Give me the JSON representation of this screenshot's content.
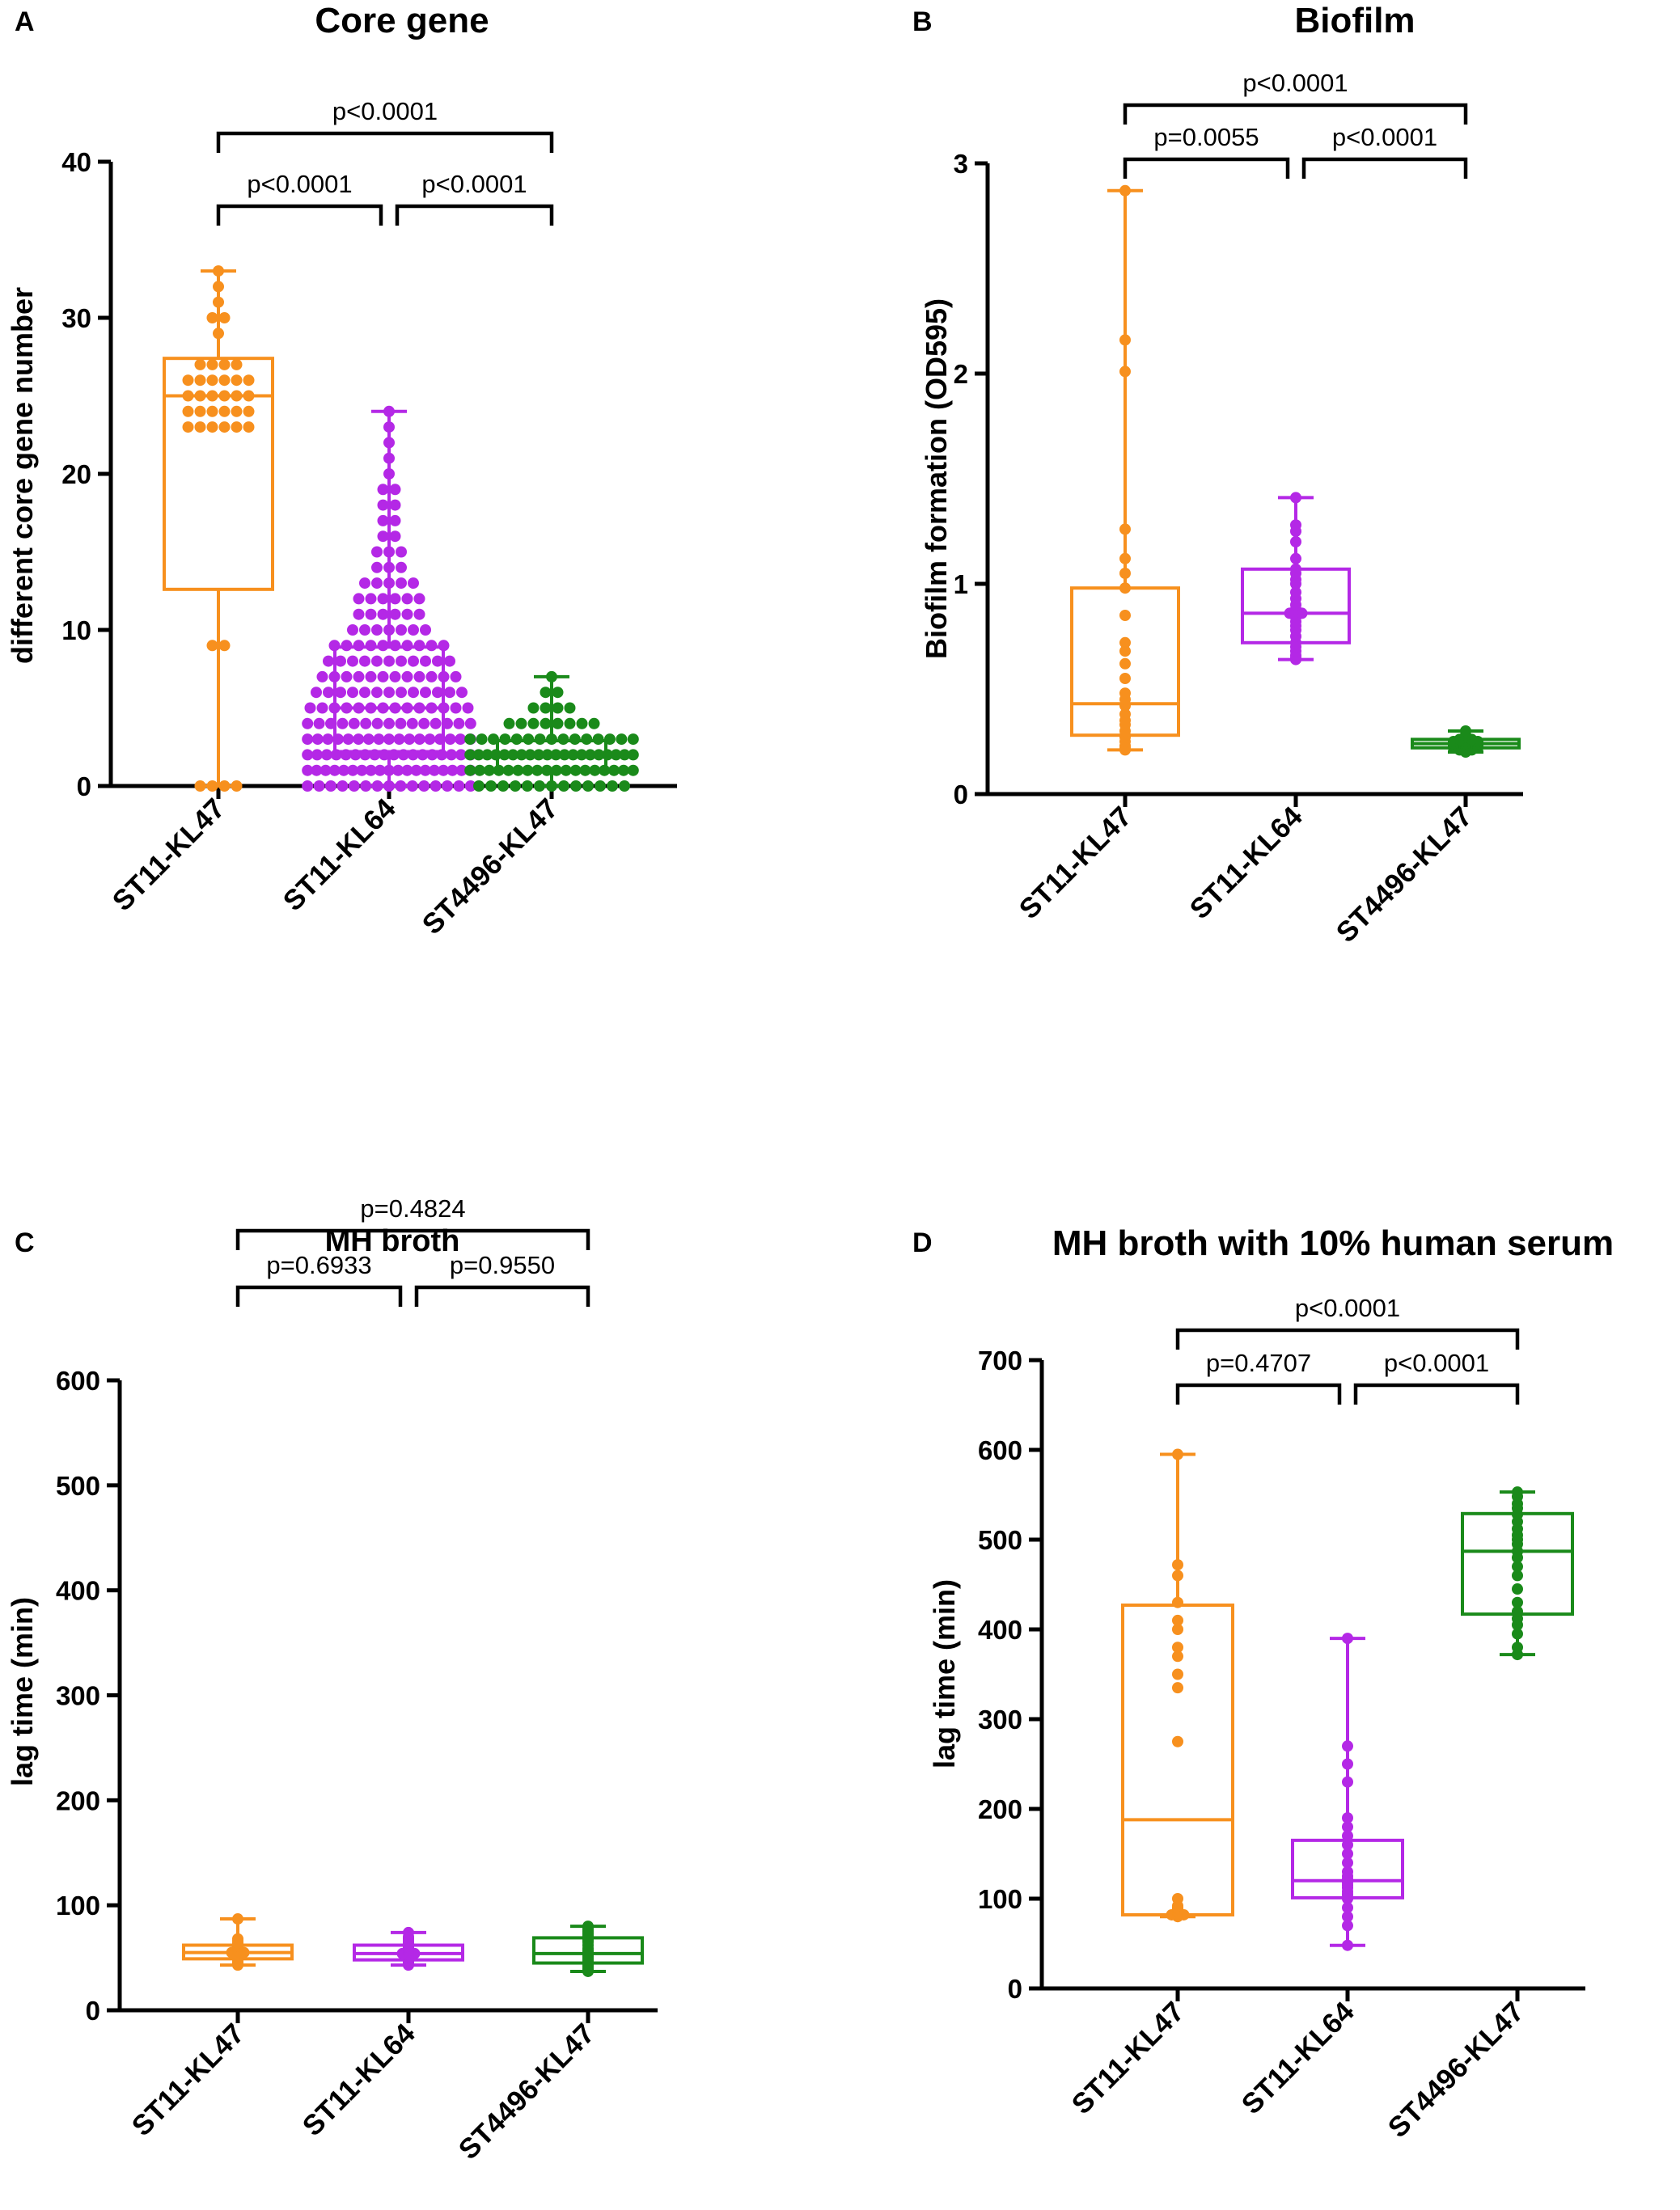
{
  "colors": {
    "ST11-KL47": "#F7901E",
    "ST11-KL64": "#B428E6",
    "ST4496-KL47": "#1A8A1A",
    "axis": "#000000"
  },
  "chart_data": [
    {
      "panel": "A",
      "type": "box",
      "title": "Core gene",
      "xlabel": "",
      "ylabel": "different core gene number",
      "ylim": [
        0,
        40
      ],
      "yticks": [
        0,
        10,
        20,
        30,
        40
      ],
      "categories": [
        "ST11-KL47",
        "ST11-KL64",
        "ST4496-KL47"
      ],
      "boxes": [
        {
          "name": "ST11-KL47",
          "min": 0,
          "q1": 12.6,
          "median": 25,
          "q3": 27.4,
          "max": 33
        },
        {
          "name": "ST11-KL64",
          "min": 0,
          "q1": 2.2,
          "median": 5,
          "q3": 8.9,
          "max": 24
        },
        {
          "name": "ST4496-KL47",
          "min": 0,
          "q1": 1,
          "median": 2,
          "q3": 2.9,
          "max": 7
        }
      ],
      "points": [
        [
          0,
          0,
          0,
          0,
          9,
          9,
          23,
          23,
          23,
          23,
          23,
          23,
          24,
          24,
          24,
          24,
          24,
          24,
          25,
          25,
          25,
          25,
          25,
          25,
          26,
          26,
          26,
          26,
          26,
          26,
          27,
          27,
          27,
          27,
          29,
          30,
          30,
          31,
          32,
          33
        ],
        [
          0,
          0,
          0,
          0,
          0,
          0,
          0,
          0,
          0,
          0,
          0,
          0,
          0,
          0,
          0,
          1,
          1,
          1,
          1,
          1,
          1,
          1,
          1,
          1,
          1,
          1,
          1,
          1,
          1,
          1,
          1,
          1,
          1,
          1,
          2,
          2,
          2,
          2,
          2,
          2,
          2,
          2,
          2,
          2,
          2,
          2,
          2,
          2,
          2,
          2,
          2,
          2,
          3,
          3,
          3,
          3,
          3,
          3,
          3,
          3,
          3,
          3,
          3,
          3,
          3,
          3,
          3,
          3,
          3,
          4,
          4,
          4,
          4,
          4,
          4,
          4,
          4,
          4,
          4,
          4,
          4,
          4,
          4,
          4,
          5,
          5,
          5,
          5,
          5,
          5,
          5,
          5,
          5,
          5,
          5,
          5,
          5,
          5,
          6,
          6,
          6,
          6,
          6,
          6,
          6,
          6,
          6,
          6,
          6,
          6,
          6,
          7,
          7,
          7,
          7,
          7,
          7,
          7,
          7,
          7,
          7,
          7,
          7,
          8,
          8,
          8,
          8,
          8,
          8,
          8,
          8,
          8,
          8,
          8,
          9,
          9,
          9,
          9,
          9,
          9,
          9,
          9,
          9,
          9,
          10,
          10,
          10,
          10,
          10,
          10,
          10,
          11,
          11,
          11,
          11,
          11,
          11,
          12,
          12,
          12,
          12,
          12,
          12,
          13,
          13,
          13,
          13,
          13,
          14,
          14,
          14,
          15,
          15,
          15,
          16,
          16,
          17,
          17,
          18,
          18,
          19,
          19,
          20,
          21,
          22,
          23,
          24
        ],
        [
          0,
          0,
          0,
          0,
          0,
          0,
          0,
          0,
          0,
          0,
          0,
          0,
          0,
          1,
          1,
          1,
          1,
          1,
          1,
          1,
          1,
          1,
          1,
          1,
          1,
          1,
          1,
          1,
          1,
          1,
          1,
          2,
          2,
          2,
          2,
          2,
          2,
          2,
          2,
          2,
          2,
          2,
          2,
          2,
          2,
          2,
          2,
          2,
          2,
          2,
          2,
          3,
          3,
          3,
          3,
          3,
          3,
          3,
          3,
          3,
          3,
          3,
          3,
          3,
          3,
          3,
          4,
          4,
          4,
          4,
          4,
          4,
          4,
          4,
          5,
          5,
          5,
          5,
          6,
          6,
          7
        ]
      ],
      "comparisons": [
        {
          "between": [
            "ST11-KL47",
            "ST11-KL64"
          ],
          "label": "p<0.0001"
        },
        {
          "between": [
            "ST11-KL64",
            "ST4496-KL47"
          ],
          "label": "p<0.0001"
        },
        {
          "between": [
            "ST11-KL47",
            "ST4496-KL47"
          ],
          "label": "p<0.0001"
        }
      ]
    },
    {
      "panel": "B",
      "type": "box",
      "title": "Biofilm",
      "xlabel": "",
      "ylabel": "Biofilm formation (OD595)",
      "ylim": [
        0,
        3
      ],
      "yticks": [
        0,
        1,
        2,
        3
      ],
      "categories": [
        "ST11-KL47",
        "ST11-KL64",
        "ST4496-KL47"
      ],
      "boxes": [
        {
          "name": "ST11-KL47",
          "min": 0.21,
          "q1": 0.28,
          "median": 0.43,
          "q3": 0.98,
          "max": 2.87
        },
        {
          "name": "ST11-KL64",
          "min": 0.64,
          "q1": 0.72,
          "median": 0.86,
          "q3": 1.07,
          "max": 1.41
        },
        {
          "name": "ST4496-KL47",
          "min": 0.2,
          "q1": 0.22,
          "median": 0.24,
          "q3": 0.26,
          "max": 0.3
        }
      ],
      "points": [
        [
          0.21,
          0.22,
          0.23,
          0.25,
          0.27,
          0.28,
          0.3,
          0.33,
          0.35,
          0.38,
          0.42,
          0.45,
          0.48,
          0.55,
          0.62,
          0.68,
          0.72,
          0.85,
          0.98,
          1.05,
          1.12,
          1.26,
          2.01,
          2.16,
          2.87
        ],
        [
          0.64,
          0.65,
          0.66,
          0.68,
          0.7,
          0.72,
          0.75,
          0.78,
          0.8,
          0.82,
          0.84,
          0.86,
          0.86,
          0.88,
          0.9,
          0.93,
          0.96,
          1.0,
          1.02,
          1.05,
          1.07,
          1.12,
          1.2,
          1.25,
          1.28,
          1.41
        ],
        [
          0.2,
          0.21,
          0.21,
          0.22,
          0.22,
          0.22,
          0.23,
          0.23,
          0.23,
          0.24,
          0.24,
          0.24,
          0.25,
          0.25,
          0.25,
          0.26,
          0.26,
          0.27,
          0.28,
          0.3
        ]
      ],
      "comparisons": [
        {
          "between": [
            "ST11-KL47",
            "ST11-KL64"
          ],
          "label": "p=0.0055"
        },
        {
          "between": [
            "ST11-KL64",
            "ST4496-KL47"
          ],
          "label": "p<0.0001"
        },
        {
          "between": [
            "ST11-KL47",
            "ST4496-KL47"
          ],
          "label": "p<0.0001"
        }
      ]
    },
    {
      "panel": "C",
      "type": "box",
      "title": "MH broth",
      "xlabel": "",
      "ylabel": "lag time (min)",
      "ylim": [
        0,
        600
      ],
      "yticks": [
        0,
        100,
        200,
        300,
        400,
        500,
        600
      ],
      "categories": [
        "ST11-KL47",
        "ST11-KL64",
        "ST4496-KL47"
      ],
      "boxes": [
        {
          "name": "ST11-KL47",
          "min": 43,
          "q1": 49,
          "median": 55,
          "q3": 62,
          "max": 87
        },
        {
          "name": "ST11-KL64",
          "min": 43,
          "q1": 48,
          "median": 54,
          "q3": 62,
          "max": 74
        },
        {
          "name": "ST4496-KL47",
          "min": 37,
          "q1": 45,
          "median": 54,
          "q3": 69,
          "max": 80
        }
      ],
      "points": [
        [
          43,
          44,
          45,
          46,
          48,
          49,
          50,
          51,
          52,
          53,
          54,
          55,
          55,
          56,
          57,
          58,
          59,
          60,
          61,
          62,
          63,
          64,
          66,
          68,
          87
        ],
        [
          43,
          44,
          46,
          47,
          48,
          49,
          50,
          51,
          52,
          53,
          54,
          54,
          55,
          56,
          57,
          58,
          59,
          60,
          62,
          64,
          66,
          68,
          70,
          74
        ],
        [
          37,
          38,
          40,
          42,
          44,
          45,
          47,
          49,
          51,
          53,
          54,
          55,
          57,
          59,
          62,
          65,
          67,
          69,
          71,
          73,
          75,
          77,
          79,
          80
        ]
      ],
      "comparisons": [
        {
          "between": [
            "ST11-KL47",
            "ST11-KL64"
          ],
          "label": "p=0.6933"
        },
        {
          "between": [
            "ST11-KL64",
            "ST4496-KL47"
          ],
          "label": "p=0.9550"
        },
        {
          "between": [
            "ST11-KL47",
            "ST4496-KL47"
          ],
          "label": "p=0.4824"
        }
      ]
    },
    {
      "panel": "D",
      "type": "box",
      "title": "MH broth with 10% human serum",
      "xlabel": "",
      "ylabel": "lag time (min)",
      "ylim": [
        0,
        700
      ],
      "yticks": [
        0,
        100,
        200,
        300,
        400,
        500,
        600,
        700
      ],
      "categories": [
        "ST11-KL47",
        "ST11-KL64",
        "ST4496-KL47"
      ],
      "boxes": [
        {
          "name": "ST11-KL47",
          "min": 80,
          "q1": 82,
          "median": 188,
          "q3": 427,
          "max": 595
        },
        {
          "name": "ST11-KL64",
          "min": 48,
          "q1": 101,
          "median": 120,
          "q3": 165,
          "max": 390
        },
        {
          "name": "ST4496-KL47",
          "min": 372,
          "q1": 417,
          "median": 487,
          "q3": 529,
          "max": 553
        }
      ],
      "points": [
        [
          80,
          81,
          82,
          82,
          83,
          84,
          85,
          86,
          87,
          88,
          89,
          90,
          92,
          100,
          275,
          335,
          350,
          370,
          380,
          400,
          410,
          430,
          460,
          472,
          595
        ],
        [
          48,
          70,
          80,
          90,
          100,
          102,
          105,
          108,
          112,
          115,
          118,
          120,
          122,
          125,
          130,
          140,
          150,
          160,
          170,
          180,
          190,
          230,
          250,
          270,
          390
        ],
        [
          372,
          380,
          395,
          405,
          412,
          420,
          430,
          445,
          460,
          470,
          480,
          487,
          495,
          500,
          505,
          512,
          520,
          528,
          535,
          540,
          548,
          553
        ]
      ],
      "comparisons": [
        {
          "between": [
            "ST11-KL47",
            "ST11-KL64"
          ],
          "label": "p=0.4707"
        },
        {
          "between": [
            "ST11-KL64",
            "ST4496-KL47"
          ],
          "label": "p<0.0001"
        },
        {
          "between": [
            "ST11-KL47",
            "ST4496-KL47"
          ],
          "label": "p<0.0001"
        }
      ]
    }
  ]
}
